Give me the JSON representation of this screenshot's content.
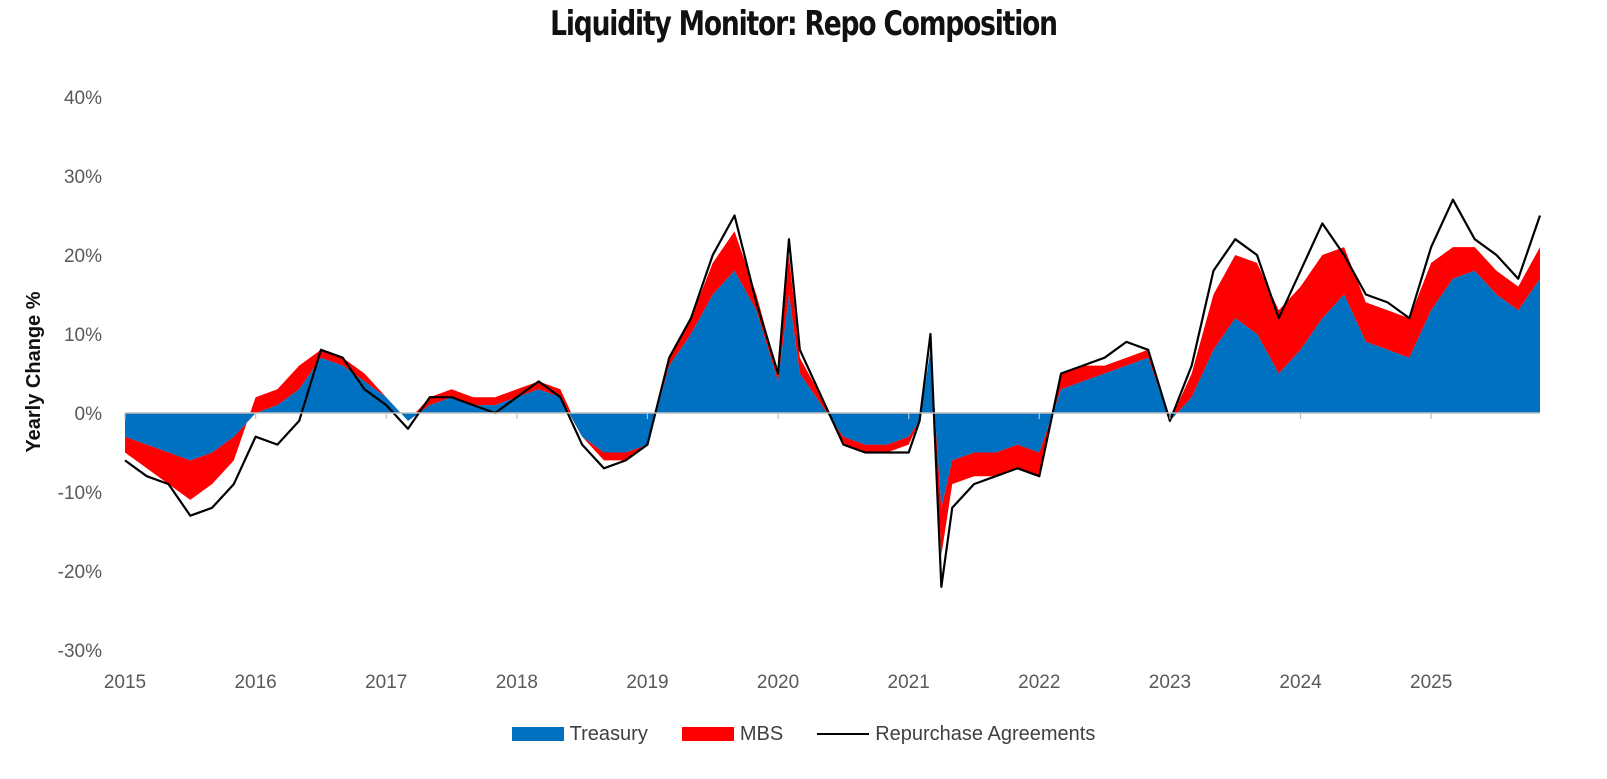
{
  "chart_data": {
    "type": "area",
    "title": "Liquidity Monitor: Repo Composition",
    "xlabel": "",
    "ylabel": "Yearly Change %",
    "xlim": [
      "2015-01-01",
      "2025-11-01"
    ],
    "ylim": [
      -30,
      40
    ],
    "yticks": [
      "-30%",
      "-20%",
      "-10%",
      "0%",
      "10%",
      "20%",
      "30%",
      "40%"
    ],
    "xticks": [
      "2015",
      "2016",
      "2017",
      "2018",
      "2019",
      "2020",
      "2021",
      "2022",
      "2023",
      "2024",
      "2025"
    ],
    "grid": false,
    "legend_position": "bottom",
    "colors": {
      "treasury": "#0070C0",
      "mbs": "#FF0000",
      "repo": "#000000"
    },
    "x": [
      "2015-01",
      "2015-03",
      "2015-05",
      "2015-07",
      "2015-09",
      "2015-11",
      "2016-01",
      "2016-03",
      "2016-05",
      "2016-07",
      "2016-09",
      "2016-11",
      "2017-01",
      "2017-03",
      "2017-05",
      "2017-07",
      "2017-09",
      "2017-11",
      "2018-01",
      "2018-03",
      "2018-05",
      "2018-07",
      "2018-09",
      "2018-11",
      "2019-01",
      "2019-03",
      "2019-05",
      "2019-07",
      "2019-09",
      "2019-11",
      "2020-01",
      "2020-02",
      "2020-03",
      "2020-05",
      "2020-07",
      "2020-09",
      "2020-11",
      "2021-01",
      "2021-02",
      "2021-03",
      "2021-04",
      "2021-05",
      "2021-07",
      "2021-09",
      "2021-11",
      "2022-01",
      "2022-03",
      "2022-05",
      "2022-07",
      "2022-09",
      "2022-11",
      "2023-01",
      "2023-03",
      "2023-05",
      "2023-07",
      "2023-09",
      "2023-11",
      "2024-01",
      "2024-03",
      "2024-05",
      "2024-07",
      "2024-09",
      "2024-11",
      "2025-01",
      "2025-03",
      "2025-05",
      "2025-07",
      "2025-09",
      "2025-11"
    ],
    "series": [
      {
        "name": "Treasury",
        "values": [
          -3,
          -4,
          -5,
          -6,
          -5,
          -3,
          0,
          1,
          3,
          7,
          6,
          4,
          2,
          -1,
          1,
          2,
          1,
          1,
          2,
          3,
          2,
          -3,
          -5,
          -5,
          -4,
          6,
          10,
          15,
          18,
          13,
          4,
          15,
          5,
          1,
          -3,
          -4,
          -4,
          -3,
          -1,
          8,
          -12,
          -6,
          -5,
          -5,
          -4,
          -5,
          3,
          4,
          5,
          6,
          7,
          -1,
          2,
          8,
          12,
          10,
          5,
          8,
          12,
          15,
          9,
          8,
          7,
          13,
          17,
          18,
          15,
          13,
          17
        ]
      },
      {
        "name": "MBS",
        "values": [
          -2,
          -3,
          -4,
          -5,
          -4,
          -3,
          2,
          2,
          3,
          1,
          1,
          1,
          0,
          0,
          1,
          1,
          1,
          1,
          1,
          1,
          1,
          0,
          -1,
          -1,
          0,
          1,
          2,
          4,
          5,
          2,
          1,
          5,
          2,
          1,
          -1,
          -1,
          -1,
          -1,
          0,
          0,
          -6,
          -3,
          -3,
          -3,
          -3,
          -3,
          2,
          2,
          1,
          1,
          1,
          0,
          3,
          7,
          8,
          9,
          8,
          8,
          8,
          6,
          5,
          5,
          5,
          6,
          4,
          3,
          3,
          3,
          4
        ]
      },
      {
        "name": "Repurchase Agreements",
        "values": [
          -6,
          -8,
          -9,
          -13,
          -12,
          -9,
          -3,
          -4,
          -1,
          8,
          7,
          3,
          1,
          -2,
          2,
          2,
          1,
          0,
          2,
          4,
          2,
          -4,
          -7,
          -6,
          -4,
          7,
          12,
          20,
          25,
          14,
          5,
          22,
          8,
          2,
          -4,
          -5,
          -5,
          -5,
          -1,
          10,
          -22,
          -12,
          -9,
          -8,
          -7,
          -8,
          5,
          6,
          7,
          9,
          8,
          -1,
          6,
          18,
          22,
          20,
          12,
          18,
          24,
          20,
          15,
          14,
          12,
          21,
          27,
          22,
          20,
          17,
          25
        ]
      }
    ]
  }
}
